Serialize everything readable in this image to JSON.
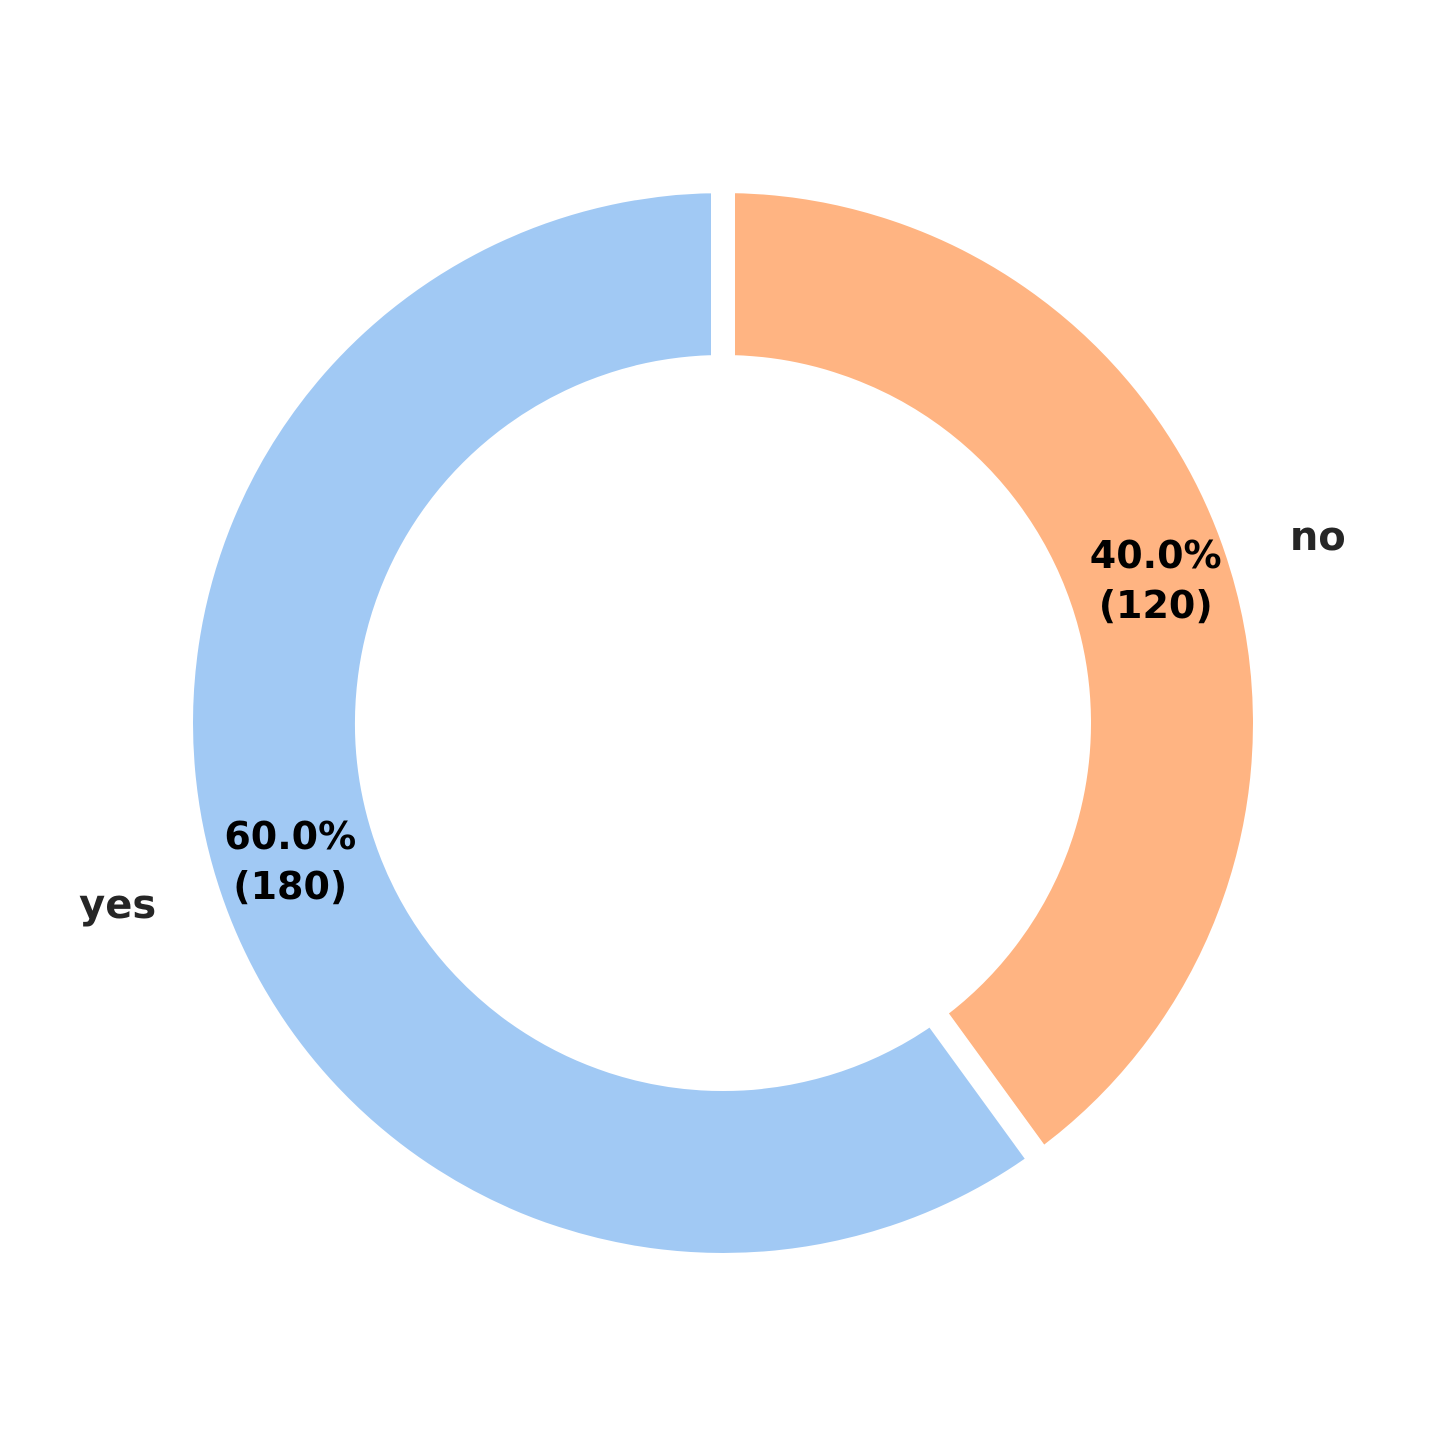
{
  "chart_data": {
    "type": "donut",
    "categories": [
      "no",
      "yes"
    ],
    "values": [
      120,
      180
    ],
    "value_labels": [
      "(120)",
      "(180)"
    ],
    "percents": [
      40,
      60
    ],
    "percent_labels": [
      "40.0%",
      "60.0%"
    ],
    "colors": [
      "#ffb482",
      "#a1c9f4"
    ],
    "start": "top",
    "direction": "clockwise"
  }
}
